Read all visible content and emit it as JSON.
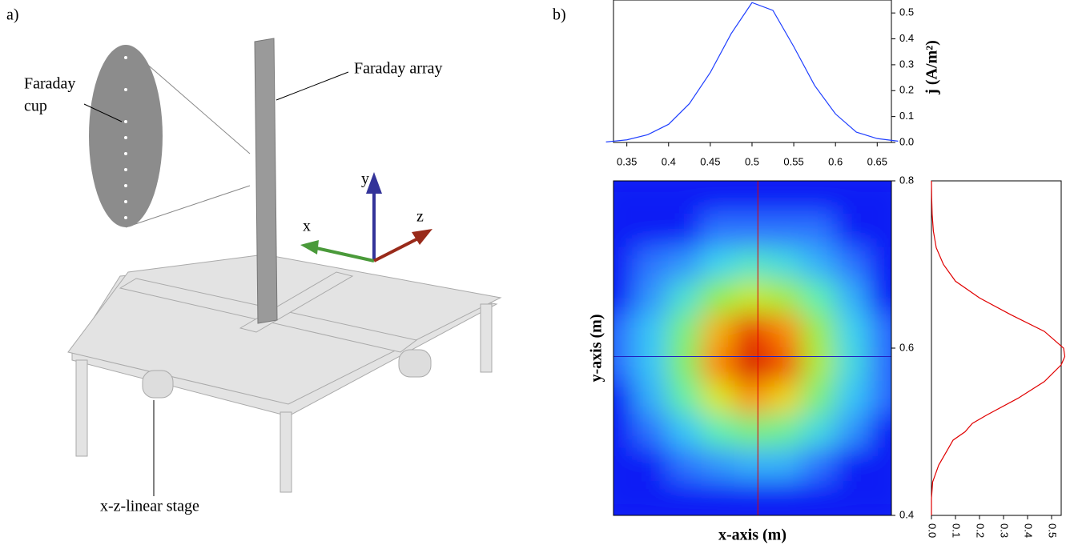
{
  "panel_a": {
    "label": "a)",
    "faraday_cup": [
      "Faraday",
      "cup"
    ],
    "faraday_array": "Faraday array",
    "stage": "x-z-linear stage",
    "axis_x": "x",
    "axis_y": "y",
    "axis_z": "z"
  },
  "panel_b_label": "b)",
  "chart_data": [
    {
      "type": "line",
      "ylabel": "j (A/m²)",
      "color": "#1f3fff",
      "x": [
        0.325,
        0.35,
        0.375,
        0.4,
        0.425,
        0.45,
        0.475,
        0.5,
        0.525,
        0.55,
        0.575,
        0.6,
        0.625,
        0.65,
        0.675
      ],
      "values": [
        0.002,
        0.01,
        0.03,
        0.07,
        0.15,
        0.27,
        0.42,
        0.54,
        0.51,
        0.37,
        0.22,
        0.11,
        0.04,
        0.015,
        0.005
      ],
      "xlim": [
        0.334,
        0.667
      ],
      "xticks": [
        0.35,
        0.4,
        0.45,
        0.5,
        0.55,
        0.6,
        0.65
      ],
      "ylim": [
        0,
        0.55
      ],
      "yticks": [
        {
          "value": 0,
          "label": "0.0"
        },
        0.1,
        0.2,
        0.3,
        0.4,
        0.5
      ]
    },
    {
      "type": "heatmap",
      "xlabel": "x-axis (m)",
      "ylabel": "y-axis (m)",
      "xlim": [
        0.334,
        0.667
      ],
      "ylim": [
        0.4,
        0.8
      ],
      "yticks": [
        0.4,
        0.6,
        0.8
      ],
      "zlim": [
        0,
        0.55
      ],
      "colormap": [
        "#0a1ef5",
        "#2f7bff",
        "#3ad0f5",
        "#5ef0b0",
        "#8ef04a",
        "#e8e800",
        "#ff7a00",
        "#d40000"
      ],
      "x": [
        0.34,
        0.38,
        0.42,
        0.46,
        0.5,
        0.54,
        0.58,
        0.62,
        0.66
      ],
      "y": [
        0.78,
        0.74,
        0.7,
        0.66,
        0.62,
        0.58,
        0.54,
        0.5,
        0.46,
        0.42
      ],
      "z": [
        [
          0,
          0,
          0,
          0,
          0,
          0,
          0,
          0,
          0
        ],
        [
          0,
          0,
          0,
          0.01,
          0.01,
          0.01,
          0.01,
          0,
          0
        ],
        [
          0,
          0.01,
          0.02,
          0.05,
          0.08,
          0.06,
          0.03,
          0.01,
          0
        ],
        [
          0,
          0.02,
          0.07,
          0.18,
          0.24,
          0.2,
          0.1,
          0.03,
          0
        ],
        [
          0.01,
          0.04,
          0.14,
          0.34,
          0.48,
          0.39,
          0.19,
          0.05,
          0.01
        ],
        [
          0.01,
          0.04,
          0.16,
          0.39,
          0.54,
          0.45,
          0.21,
          0.06,
          0.01
        ],
        [
          0,
          0.03,
          0.11,
          0.26,
          0.37,
          0.3,
          0.14,
          0.04,
          0.01
        ],
        [
          0,
          0.01,
          0.04,
          0.1,
          0.14,
          0.12,
          0.06,
          0.02,
          0
        ],
        [
          0,
          0,
          0.01,
          0.02,
          0.03,
          0.03,
          0.01,
          0,
          0
        ],
        [
          0,
          0,
          0,
          0,
          0,
          0,
          0,
          0,
          0
        ]
      ],
      "crosshair": {
        "x": 0.507,
        "y": 0.59,
        "x_color": "#e00000",
        "y_color": "#2020c0"
      }
    },
    {
      "type": "line",
      "orientation": "vertical",
      "color": "#e00000",
      "x": [
        0.4,
        0.42,
        0.44,
        0.46,
        0.48,
        0.49,
        0.5,
        0.51,
        0.52,
        0.54,
        0.56,
        0.58,
        0.59,
        0.6,
        0.62,
        0.64,
        0.66,
        0.68,
        0.7,
        0.72,
        0.74,
        0.76,
        0.78,
        0.8
      ],
      "values": [
        0.0,
        0.0,
        0.005,
        0.03,
        0.07,
        0.09,
        0.14,
        0.17,
        0.23,
        0.36,
        0.47,
        0.54,
        0.555,
        0.55,
        0.47,
        0.33,
        0.2,
        0.1,
        0.05,
        0.02,
        0.008,
        0.003,
        0.001,
        0.0
      ],
      "xlim": [
        0.4,
        0.8
      ],
      "ylim": [
        0,
        0.54
      ],
      "yticks": [
        {
          "value": 0,
          "label": "0.0"
        },
        0.1,
        0.2,
        0.3,
        0.4,
        0.5
      ]
    }
  ]
}
